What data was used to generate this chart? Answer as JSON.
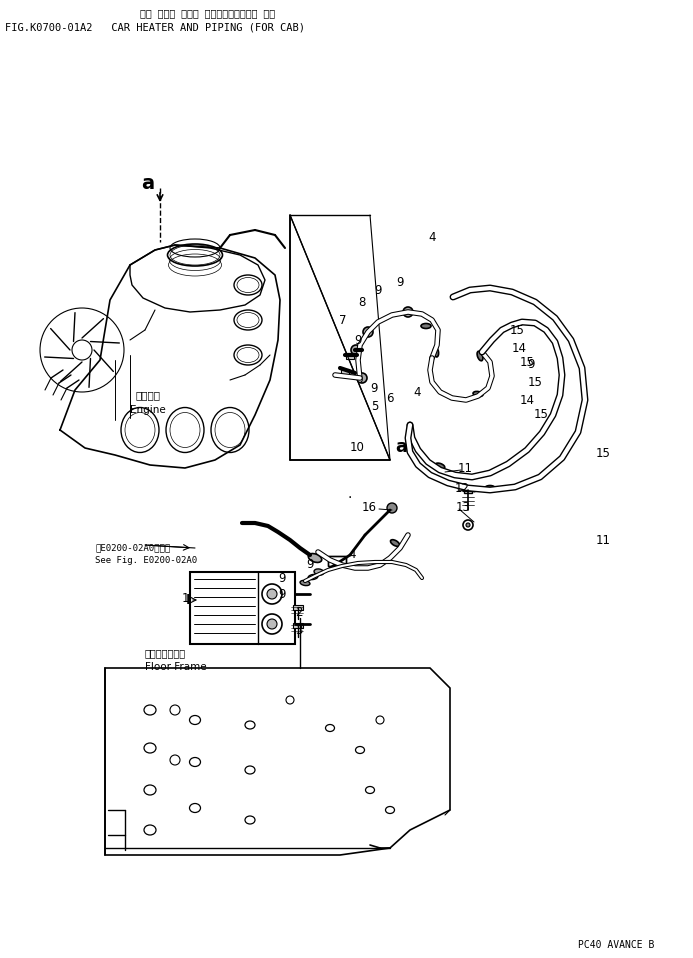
{
  "title_japanese": "カー ヒータ および パイピング（キャブ 用）",
  "title_english": "FIG.K0700-01A2   CAR HEATER AND PIPING (FOR CAB)",
  "footer": "PC40 AVANCE B",
  "bg_color": "#ffffff",
  "line_color": "#000000",
  "engine_label_jp": "エンジン",
  "engine_label_en": "Engine",
  "floor_label_jp": "フロアフレーム",
  "floor_label_en": "Floor Frame",
  "see_fig_jp": "※E0200-02A0図参照",
  "see_fig_en": "See Fig. E0200-02A0"
}
